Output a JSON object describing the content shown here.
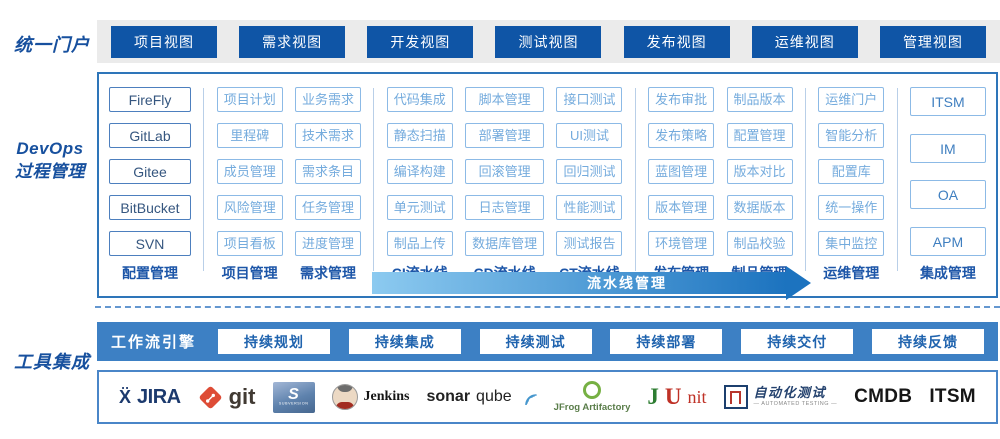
{
  "sections": {
    "portal_label": "统一门户",
    "devops_label_line1": "DevOps",
    "devops_label_line2": "过程管理",
    "tools_label": "工具集成"
  },
  "portal": {
    "views": [
      "项目视图",
      "需求视图",
      "开发视图",
      "测试视图",
      "发布视图",
      "运维视图",
      "管理视图"
    ]
  },
  "devops": {
    "pipeline_arrow_label": "流水线管理",
    "columns": [
      {
        "label": "配置管理",
        "variant": "dark",
        "divider_after": true,
        "items": [
          "FireFly",
          "GitLab",
          "Gitee",
          "BitBucket",
          "SVN"
        ]
      },
      {
        "label": "项目管理",
        "variant": "light",
        "divider_after": false,
        "items": [
          "项目计划",
          "里程碑",
          "成员管理",
          "风险管理",
          "项目看板"
        ]
      },
      {
        "label": "需求管理",
        "variant": "light",
        "divider_after": true,
        "items": [
          "业务需求",
          "技术需求",
          "需求条目",
          "任务管理",
          "进度管理"
        ]
      },
      {
        "label": "CI流水线",
        "variant": "light",
        "divider_after": false,
        "items": [
          "代码集成",
          "静态扫描",
          "编译构建",
          "单元测试",
          "制品上传"
        ]
      },
      {
        "label": "CD流水线",
        "variant": "light",
        "divider_after": false,
        "items": [
          "脚本管理",
          "部署管理",
          "回滚管理",
          "日志管理",
          "数据库管理"
        ]
      },
      {
        "label": "CT流水线",
        "variant": "light",
        "divider_after": true,
        "items": [
          "接口测试",
          "UI测试",
          "回归测试",
          "性能测试",
          "测试报告"
        ]
      },
      {
        "label": "发布管理",
        "variant": "light",
        "divider_after": false,
        "items": [
          "发布审批",
          "发布策略",
          "蓝图管理",
          "版本管理",
          "环境管理"
        ]
      },
      {
        "label": "制品管理",
        "variant": "light",
        "divider_after": true,
        "items": [
          "制品版本",
          "配置管理",
          "版本对比",
          "数据版本",
          "制品校验"
        ]
      },
      {
        "label": "运维管理",
        "variant": "light",
        "divider_after": true,
        "items": [
          "运维门户",
          "智能分析",
          "配置库",
          "统一操作",
          "集中监控"
        ]
      },
      {
        "label": "集成管理",
        "variant": "medium",
        "divider_after": false,
        "items": [
          "ITSM",
          "IM",
          "OA",
          "APM"
        ]
      }
    ]
  },
  "workflow": {
    "engine_label": "工作流引擎",
    "stages": [
      "持续规划",
      "持续集成",
      "持续测试",
      "持续部署",
      "持续交付",
      "持续反馈"
    ]
  },
  "tools": {
    "logos": [
      {
        "name": "jira",
        "mark": "Ẍ",
        "text": "JIRA"
      },
      {
        "name": "git",
        "text": "git"
      },
      {
        "name": "subversion",
        "text": "S",
        "subtext": "SUBVERSION"
      },
      {
        "name": "jenkins",
        "text": "Jenkins"
      },
      {
        "name": "sonarqube",
        "text_bold": "sonar",
        "text_light": "qube"
      },
      {
        "name": "jfrog-artifactory",
        "text": "JFrog Artifactory"
      },
      {
        "name": "junit",
        "parts": {
          "j": "J",
          "u": "U",
          "nit": "nit"
        }
      },
      {
        "name": "automated-testing",
        "text": "自动化测试",
        "subtext": "— AUTOMATED TESTING —"
      },
      {
        "name": "cmdb",
        "text": "CMDB"
      },
      {
        "name": "itsm",
        "text": "ITSM"
      }
    ]
  },
  "colors": {
    "primary-dark": "#0f55a6",
    "band-gray": "#ebebeb",
    "label-blue": "#17509e",
    "box-border": "#2e75b9",
    "dark-item-border": "#4d7fbe",
    "dark-item-text": "#35567f",
    "light-item-border": "#8cbae6",
    "light-item-text": "#74abdd",
    "medium-item-text": "#3f7fc0",
    "column-label": "#1d56a8",
    "divider": "#b9cfe8",
    "arrow-from": "#8ccaf0",
    "arrow-to": "#1c73bf",
    "workflow-bar": "#3d80c4",
    "workflow-text": "#1f63ae",
    "outer-blue": "#4a86c8"
  }
}
